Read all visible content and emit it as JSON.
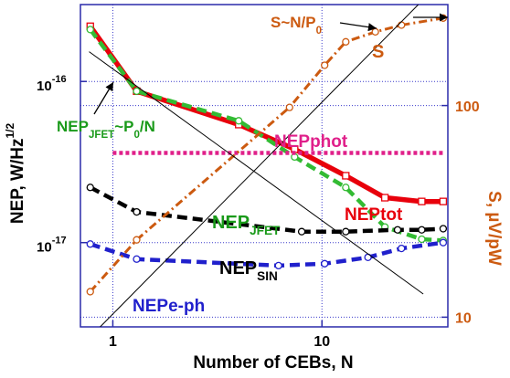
{
  "chart_data": {
    "type": "line",
    "xlabel": "Number of CEBs, N",
    "ylabel": {
      "text": "NEP, W/Hz",
      "sup": "1/2"
    },
    "y2label": "S, µV/pW",
    "xscale": "log",
    "yscale": "log",
    "y2scale": "log",
    "xlim": [
      0.7,
      40
    ],
    "ylim": [
      3e-18,
      3e-16
    ],
    "y2lim": [
      9,
      300
    ],
    "xticks": [
      1,
      10
    ],
    "yticks": [
      {
        "value": 1e-16,
        "label": "10",
        "sup": "-16"
      },
      {
        "value": 1e-17,
        "label": "10",
        "sup": "-17"
      }
    ],
    "y2ticks": [
      10,
      100
    ],
    "grid": true,
    "series": [
      {
        "color": "#e8000b",
        "style": "solid",
        "marker": "square",
        "x": [
          0.78,
          1.3,
          4,
          7.4,
          13,
          20,
          30,
          38
        ],
        "values": [
          2.2e-16,
          8.7e-17,
          5.4e-17,
          3.8e-17,
          2.6e-17,
          1.9e-17,
          1.8e-17,
          1.8e-17
        ]
      },
      {
        "color": "#33bb33",
        "style": "dashed",
        "marker": "circle",
        "x": [
          0.78,
          1.3,
          4,
          7.4,
          13,
          20,
          30,
          38
        ],
        "values": [
          2.1e-16,
          8.7e-17,
          5.7e-17,
          3.4e-17,
          2.2e-17,
          1.25e-17,
          1.05e-17,
          1.03e-17
        ]
      },
      {
        "color": "#000000",
        "style": "dashed",
        "marker": "circle",
        "x": [
          0.78,
          1.3,
          8,
          13,
          23,
          30,
          38
        ],
        "values": [
          2.2e-17,
          1.55e-17,
          1.17e-17,
          1.17e-17,
          1.2e-17,
          1.2e-17,
          1.22e-17
        ]
      },
      {
        "color": "#2020cc",
        "style": "dashed",
        "marker": "circle",
        "x": [
          0.78,
          1.3,
          6.2,
          10.3,
          16.6,
          24,
          38
        ],
        "values": [
          9.8e-18,
          7.9e-18,
          7.2e-18,
          7.4e-18,
          8.1e-18,
          9.2e-18,
          1e-17
        ]
      },
      {
        "color": "#e0208a",
        "style": "dotted",
        "marker": "none",
        "x": [
          1,
          38
        ],
        "values": [
          3.6e-17,
          3.6e-17
        ]
      },
      {
        "color": "#cc5a10",
        "style": "dashdot",
        "marker": "circle",
        "axis": "y2",
        "x": [
          0.78,
          1.3,
          7,
          10.3,
          13,
          18,
          24,
          38
        ],
        "values": [
          13.2,
          23.2,
          98,
          155,
          200,
          223,
          240,
          259
        ]
      },
      {
        "color": "#000000",
        "style": "thin",
        "marker": "none",
        "axis": "y2",
        "x": [
          0.87,
          28.9
        ],
        "values": [
          9,
          300
        ]
      },
      {
        "color": "#000000",
        "style": "thin",
        "marker": "none",
        "x": [
          0.77,
          30.5
        ],
        "values": [
          1.53e-16,
          4.8e-18
        ]
      }
    ],
    "annotations": [
      {
        "color": "#cc5a10",
        "size": 17,
        "parts": [
          {
            "text": "S~N/P"
          },
          {
            "sub": "0"
          }
        ]
      },
      {
        "color": "#cc5a10",
        "size": 20,
        "parts": [
          {
            "text": "S"
          }
        ]
      },
      {
        "color": "#1a9a1a",
        "size": 17,
        "parts": [
          {
            "text": "NEP"
          },
          {
            "sub": "JFET"
          },
          {
            "text": "~P"
          },
          {
            "sub": "0"
          },
          {
            "text": "/N"
          }
        ]
      },
      {
        "color": "#e0208a",
        "size": 19,
        "parts": [
          {
            "text": "NEPphot"
          }
        ]
      },
      {
        "color": "#e8000b",
        "size": 19,
        "parts": [
          {
            "text": "NEPtot"
          }
        ]
      },
      {
        "color": "#1a9a1a",
        "size": 20,
        "parts": [
          {
            "text": "NEP"
          },
          {
            "sub": "JFET"
          }
        ]
      },
      {
        "color": "#000000",
        "size": 20,
        "parts": [
          {
            "text": "NEP"
          },
          {
            "sub": "SIN"
          }
        ]
      },
      {
        "color": "#2020cc",
        "size": 19,
        "parts": [
          {
            "text": "NEPe-ph"
          }
        ]
      }
    ]
  }
}
